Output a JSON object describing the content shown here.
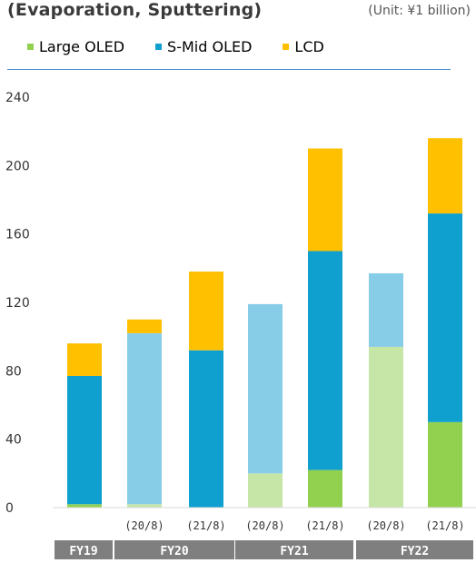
{
  "title": "(Evaporation, Sputtering)",
  "unit": "(Unit: ¥1 billion)",
  "chart_data": {
    "type": "bar",
    "stacked": true,
    "title": "(Evaporation, Sputtering)",
    "unit": "(Unit: ¥1 billion)",
    "ylim": [
      0,
      240
    ],
    "y_ticks": [
      0,
      40,
      80,
      120,
      160,
      200,
      240
    ],
    "grid": false,
    "legend_position": "top",
    "categories": [
      "FY19",
      "FY20 (20/8)",
      "FY20 (21/8)",
      "FY21 (20/8)",
      "FY21 (21/8)",
      "FY22 (20/8)",
      "FY22 (21/8)"
    ],
    "bar_sublabels": [
      "",
      "(20/8)",
      "(21/8)",
      "(20/8)",
      "(21/8)",
      "(20/8)",
      "(21/8)"
    ],
    "groups": [
      {
        "label": "FY19",
        "bars": [
          0
        ]
      },
      {
        "label": "FY20",
        "bars": [
          1,
          2
        ]
      },
      {
        "label": "FY21",
        "bars": [
          3,
          4
        ]
      },
      {
        "label": "FY22",
        "bars": [
          5,
          6
        ]
      }
    ],
    "series": [
      {
        "name": "Large OLED",
        "values": [
          2,
          2,
          0,
          20,
          22,
          94,
          50
        ]
      },
      {
        "name": "S-Mid OLED",
        "values": [
          75,
          100,
          92,
          99,
          128,
          43,
          122
        ]
      },
      {
        "name": "LCD",
        "values": [
          19,
          8,
          46,
          0,
          60,
          0,
          44
        ]
      }
    ],
    "bar_colors": [
      [
        "#92d050",
        "#0fa0d0",
        "#ffc000"
      ],
      [
        "#c6e6a8",
        "#87cde8",
        "#ffc000"
      ],
      [
        "#92d050",
        "#0fa0d0",
        "#ffc000"
      ],
      [
        "#c6e6a8",
        "#87cde8",
        "#ffc000"
      ],
      [
        "#92d050",
        "#0fa0d0",
        "#ffc000"
      ],
      [
        "#c6e6a8",
        "#87cde8",
        "#ffc000"
      ],
      [
        "#92d050",
        "#0fa0d0",
        "#ffc000"
      ]
    ],
    "legend_colors": [
      "#92d050",
      "#0fa0d0",
      "#ffc000"
    ],
    "group_band_color": "#7f7f7f"
  }
}
